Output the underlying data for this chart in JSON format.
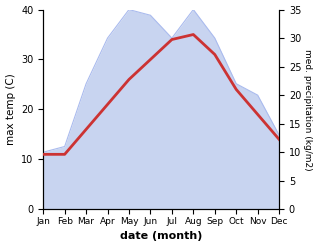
{
  "months": [
    "Jan",
    "Feb",
    "Mar",
    "Apr",
    "May",
    "Jun",
    "Jul",
    "Aug",
    "Sep",
    "Oct",
    "Nov",
    "Dec"
  ],
  "month_positions": [
    1,
    2,
    3,
    4,
    5,
    6,
    7,
    8,
    9,
    10,
    11,
    12
  ],
  "max_temp": [
    11,
    11,
    16,
    21,
    26,
    30,
    34,
    35,
    31,
    24,
    19,
    14
  ],
  "precipitation": [
    10,
    11,
    22,
    30,
    35,
    34,
    30,
    35,
    30,
    22,
    20,
    13
  ],
  "temp_color": "#cc3333",
  "precip_fill_color": "#c8d4f0",
  "precip_edge_color": "#aabbee",
  "temp_ylim": [
    0,
    40
  ],
  "precip_ylim": [
    0,
    35
  ],
  "temp_yticks": [
    0,
    10,
    20,
    30,
    40
  ],
  "precip_yticks": [
    0,
    5,
    10,
    15,
    20,
    25,
    30,
    35
  ],
  "xlabel": "date (month)",
  "ylabel_left": "max temp (C)",
  "ylabel_right": "med. precipitation (kg/m2)",
  "figsize": [
    3.18,
    2.47
  ],
  "dpi": 100
}
